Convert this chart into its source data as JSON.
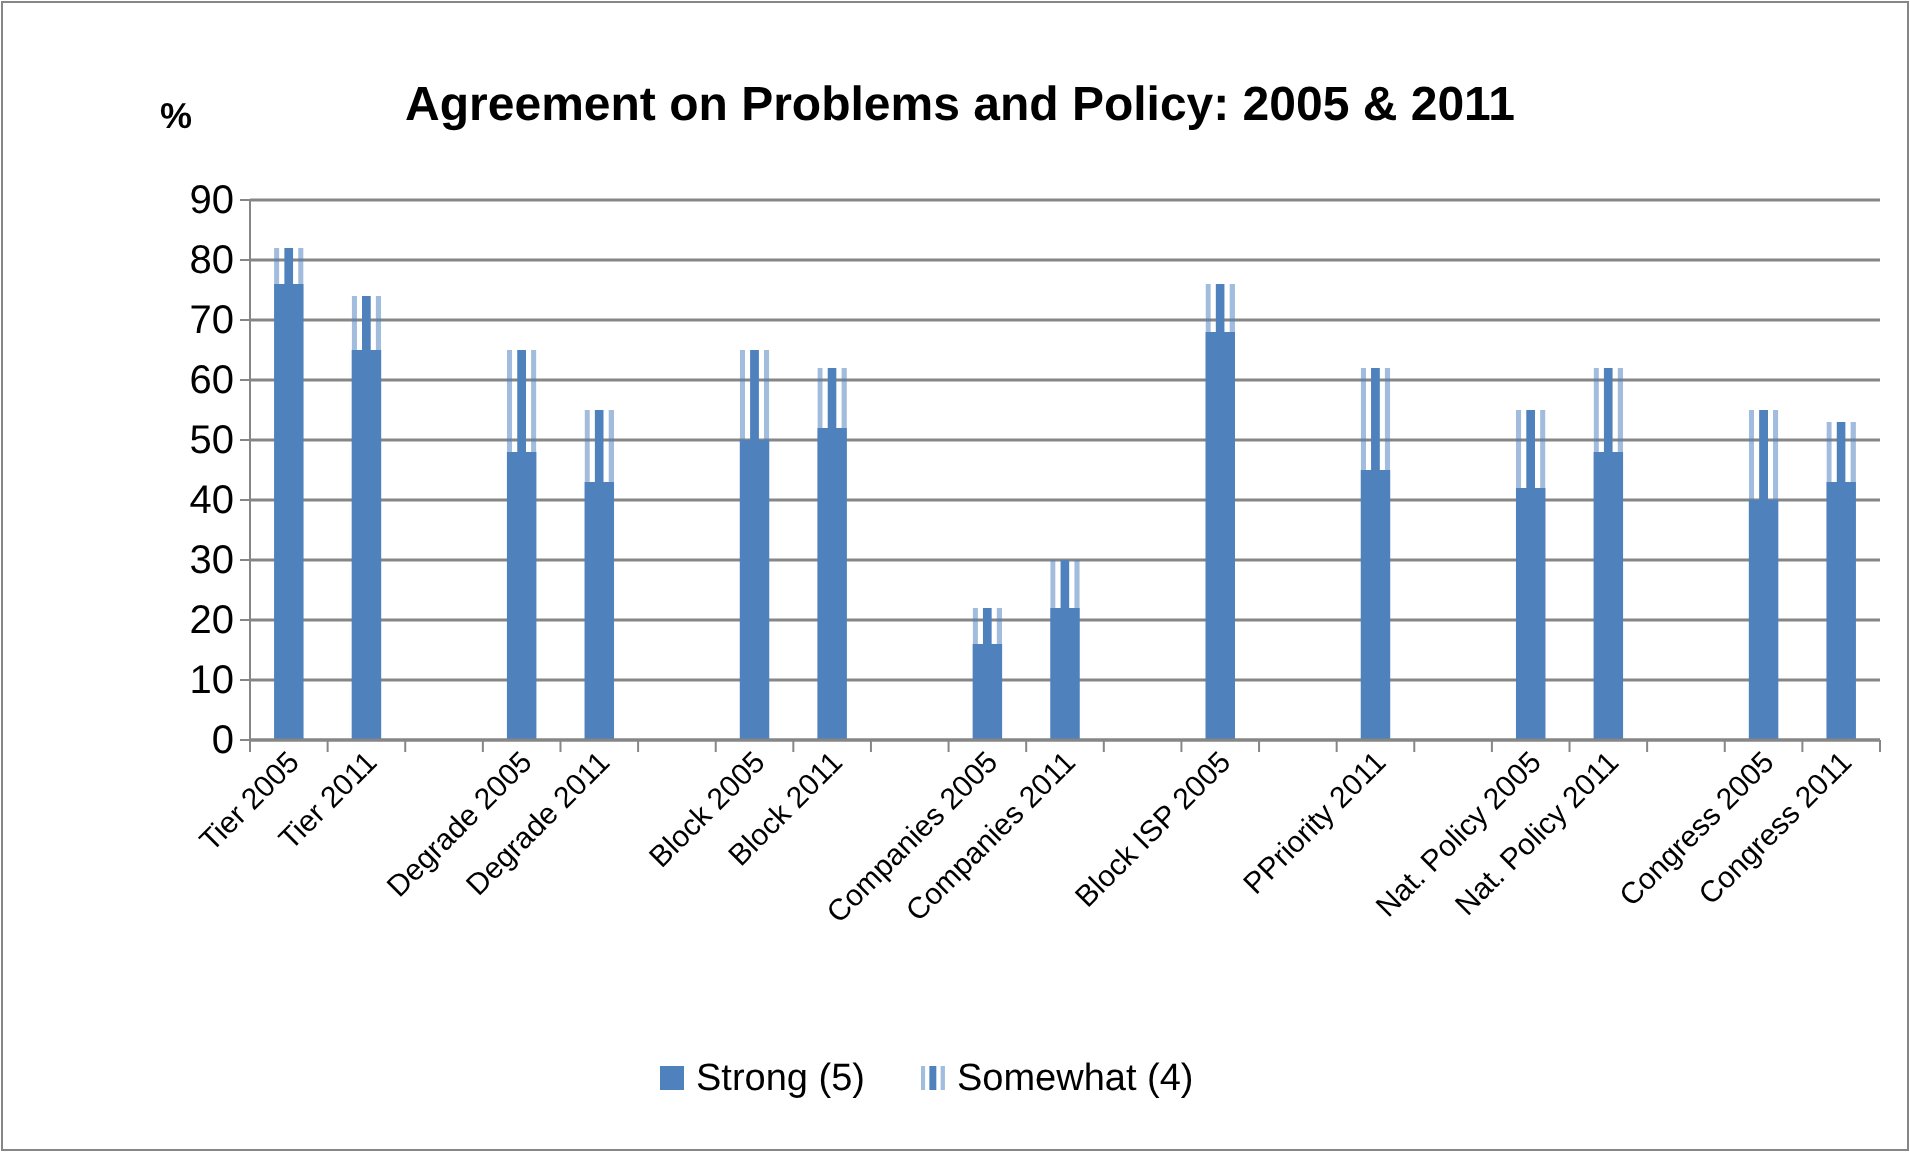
{
  "chart_data": {
    "type": "bar",
    "title": "Agreement on Problems and Policy: 2005 & 2011",
    "ylabel": "%",
    "categories": [
      "Tier 2005",
      "Tier 2011",
      null,
      "Degrade 2005",
      "Degrade 2011",
      null,
      "Block 2005",
      "Block 2011",
      null,
      "Companies 2005",
      "Companies 2011",
      null,
      "Block ISP 2005",
      null,
      "PPriority 2011",
      null,
      "Nat. Policy 2005",
      "Nat. Policy 2011",
      null,
      "Congress 2005",
      "Congress 2011"
    ],
    "series": [
      {
        "name": "Strong (5)",
        "color": "#4f81bd",
        "values": [
          76,
          65,
          null,
          48,
          43,
          null,
          50,
          52,
          null,
          16,
          22,
          null,
          68,
          null,
          45,
          null,
          42,
          48,
          null,
          40,
          43
        ]
      },
      {
        "name": "Somewhat (4)",
        "color": "#4f81bd",
        "values": [
          6,
          9,
          null,
          17,
          12,
          null,
          15,
          10,
          null,
          6,
          8,
          null,
          8,
          null,
          17,
          null,
          13,
          14,
          null,
          15,
          10
        ]
      }
    ],
    "stacked": true,
    "ylim": [
      0,
      90
    ],
    "yticks": [
      0,
      10,
      20,
      30,
      40,
      50,
      60,
      70,
      80,
      90
    ],
    "grid": "y",
    "legend": "bottom"
  }
}
